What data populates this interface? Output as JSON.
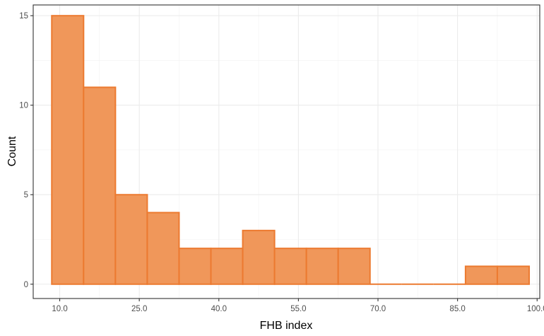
{
  "chart_data": {
    "type": "histogram",
    "title": "",
    "xlabel": "FHB index",
    "ylabel": "Count",
    "x_ticks": [
      "10.0",
      "25.0",
      "40.0",
      "55.0",
      "70.0",
      "85.0",
      "100.0"
    ],
    "y_ticks": [
      "0",
      "5",
      "10",
      "15"
    ],
    "xlim": [
      5,
      100.5
    ],
    "ylim": [
      -0.8,
      15.6
    ],
    "bins": [
      {
        "x0": 8.5,
        "x1": 14.5,
        "count": 15
      },
      {
        "x0": 14.5,
        "x1": 20.5,
        "count": 11
      },
      {
        "x0": 20.5,
        "x1": 26.5,
        "count": 5
      },
      {
        "x0": 26.5,
        "x1": 32.5,
        "count": 4
      },
      {
        "x0": 32.5,
        "x1": 38.5,
        "count": 2
      },
      {
        "x0": 38.5,
        "x1": 44.5,
        "count": 2
      },
      {
        "x0": 44.5,
        "x1": 50.5,
        "count": 3
      },
      {
        "x0": 50.5,
        "x1": 56.5,
        "count": 2
      },
      {
        "x0": 56.5,
        "x1": 62.5,
        "count": 2
      },
      {
        "x0": 62.5,
        "x1": 68.5,
        "count": 2
      },
      {
        "x0": 68.5,
        "x1": 74.5,
        "count": 0
      },
      {
        "x0": 74.5,
        "x1": 80.5,
        "count": 0
      },
      {
        "x0": 80.5,
        "x1": 86.5,
        "count": 0
      },
      {
        "x0": 86.5,
        "x1": 92.5,
        "count": 1
      },
      {
        "x0": 92.5,
        "x1": 98.5,
        "count": 1
      }
    ],
    "grid": true,
    "legend": "none",
    "fill_color": "#F0975A",
    "stroke_color": "#EC7A30"
  }
}
